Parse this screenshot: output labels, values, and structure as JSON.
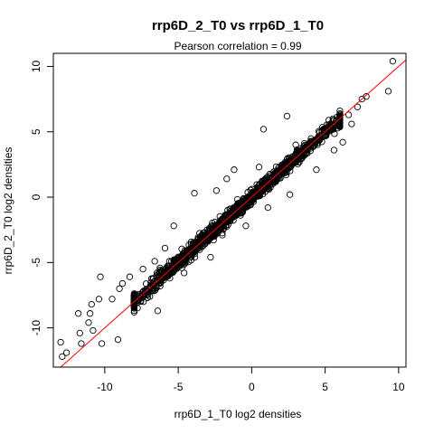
{
  "chart_data": {
    "type": "scatter",
    "title": "rrp6D_2_T0 vs rrp6D_1_T0",
    "subtitle": "Pearson correlation =  0.99",
    "xlabel": "rrp6D_1_T0 log2 densities",
    "ylabel": "rrp6D_2_T0 log2 densities",
    "xlim": [
      -13.5,
      10.5
    ],
    "ylim": [
      -13.0,
      11.0
    ],
    "x_ticks": [
      -10,
      -5,
      0,
      5,
      10
    ],
    "y_ticks": [
      -10,
      -5,
      0,
      5,
      10
    ],
    "x_tick_labels": [
      "-10",
      "-5",
      "0",
      "5",
      "10"
    ],
    "y_tick_labels": [
      "-10",
      "-5",
      "0",
      "5",
      "10"
    ],
    "marker": "open-circle",
    "point_color": "#000000",
    "fit_line": {
      "slope": 1.0,
      "intercept": 0.0,
      "color": "#ff0000"
    },
    "grid": false,
    "outliers": [
      {
        "x": 9.6,
        "y": 10.4
      },
      {
        "x": 9.3,
        "y": 8.1
      },
      {
        "x": 7.8,
        "y": 7.7
      },
      {
        "x": 7.5,
        "y": 7.5
      },
      {
        "x": 7.2,
        "y": 6.9
      },
      {
        "x": 6.6,
        "y": 6.3
      },
      {
        "x": 2.4,
        "y": 6.2
      },
      {
        "x": 0.8,
        "y": 5.2
      },
      {
        "x": 6.2,
        "y": 4.2
      },
      {
        "x": 6.8,
        "y": 5.6
      },
      {
        "x": 5.6,
        "y": 3.6
      },
      {
        "x": -3.9,
        "y": 0.3
      },
      {
        "x": -2.4,
        "y": 0.5
      },
      {
        "x": -1.2,
        "y": 2.1
      },
      {
        "x": 0.5,
        "y": 2.3
      },
      {
        "x": -5.3,
        "y": -2.2
      },
      {
        "x": -2.0,
        "y": -2.9
      },
      {
        "x": -3.3,
        "y": -3.7
      },
      {
        "x": -6.6,
        "y": -4.9
      },
      {
        "x": -5.9,
        "y": -3.9
      },
      {
        "x": -7.4,
        "y": -5.5
      },
      {
        "x": -8.3,
        "y": -6.1
      },
      {
        "x": -8.8,
        "y": -6.6
      },
      {
        "x": -7.6,
        "y": -7.6
      },
      {
        "x": -10.3,
        "y": -6.1
      },
      {
        "x": -9.0,
        "y": -7.0
      },
      {
        "x": -9.5,
        "y": -7.8
      },
      {
        "x": -10.4,
        "y": -7.8
      },
      {
        "x": -10.9,
        "y": -8.2
      },
      {
        "x": -11.0,
        "y": -8.9
      },
      {
        "x": -11.8,
        "y": -8.9
      },
      {
        "x": -11.1,
        "y": -9.6
      },
      {
        "x": -10.8,
        "y": -10.2
      },
      {
        "x": -11.7,
        "y": -10.4
      },
      {
        "x": -11.6,
        "y": -11.2
      },
      {
        "x": -10.2,
        "y": -11.2
      },
      {
        "x": -9.1,
        "y": -10.9
      },
      {
        "x": -12.6,
        "y": -11.9
      },
      {
        "x": -13.0,
        "y": -11.1
      },
      {
        "x": -12.9,
        "y": -12.2
      },
      {
        "x": -8.0,
        "y": -8.8
      },
      {
        "x": -6.4,
        "y": -8.7
      },
      {
        "x": -4.6,
        "y": -5.8
      },
      {
        "x": -2.8,
        "y": -4.6
      },
      {
        "x": -0.4,
        "y": -2.2
      },
      {
        "x": 2.6,
        "y": 0.2
      },
      {
        "x": 4.4,
        "y": 2.1
      },
      {
        "x": 1.1,
        "y": -0.8
      },
      {
        "x": -1.7,
        "y": 1.4
      },
      {
        "x": 3.0,
        "y": 4.0
      }
    ],
    "bulk": {
      "x_range": [
        -8.0,
        6.0
      ],
      "spread_sd": 0.35,
      "count": 1400
    }
  }
}
